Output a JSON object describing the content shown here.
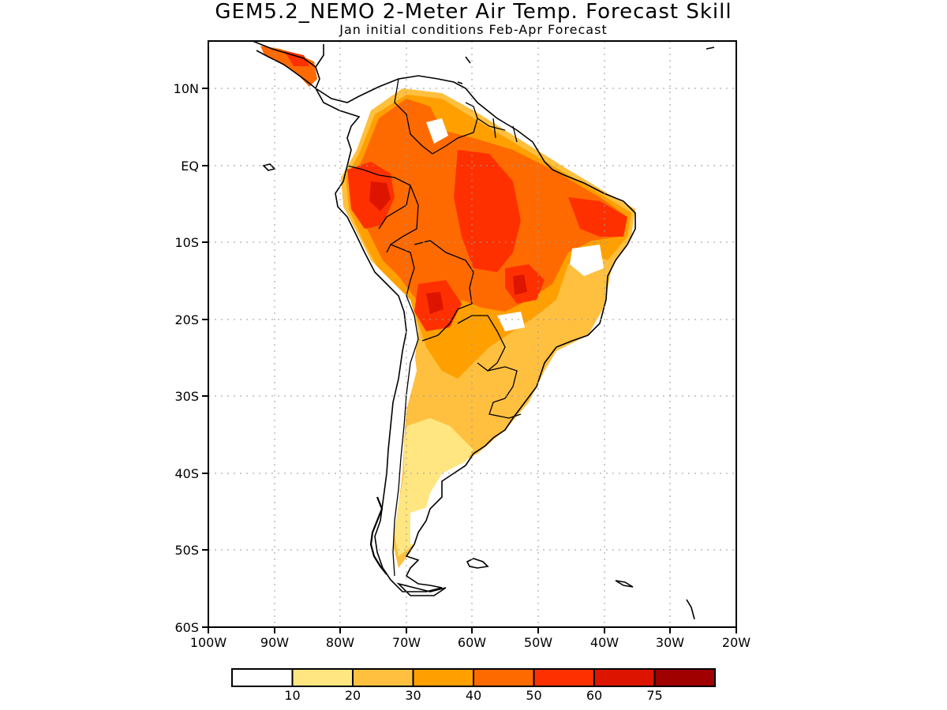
{
  "title": "GEM5.2_NEMO 2-Meter Air Temp. Forecast Skill",
  "subtitle": "Jan initial conditions  Feb-Apr Forecast",
  "map": {
    "extent": {
      "lon_min": -100,
      "lon_max": -20,
      "lat_min": -60,
      "lat_max": 15
    },
    "lat_ticks": [
      "10N",
      "EQ",
      "10S",
      "20S",
      "30S",
      "40S",
      "50S",
      "60S"
    ],
    "lon_ticks": [
      "100W",
      "90W",
      "80W",
      "70W",
      "60W",
      "50W",
      "40W",
      "30W",
      "20W"
    ],
    "grid": "dotted"
  },
  "colorbar": {
    "bins": [
      "<10",
      "10-20",
      "20-30",
      "30-40",
      "40-50",
      "50-60",
      "60-75",
      ">75"
    ],
    "labels": [
      "10",
      "20",
      "30",
      "40",
      "50",
      "60",
      "75"
    ],
    "colors": [
      "#ffffff",
      "#ffe680",
      "#ffc040",
      "#ffa000",
      "#ff6a00",
      "#ff3000",
      "#dd1500",
      "#a00000"
    ]
  }
}
